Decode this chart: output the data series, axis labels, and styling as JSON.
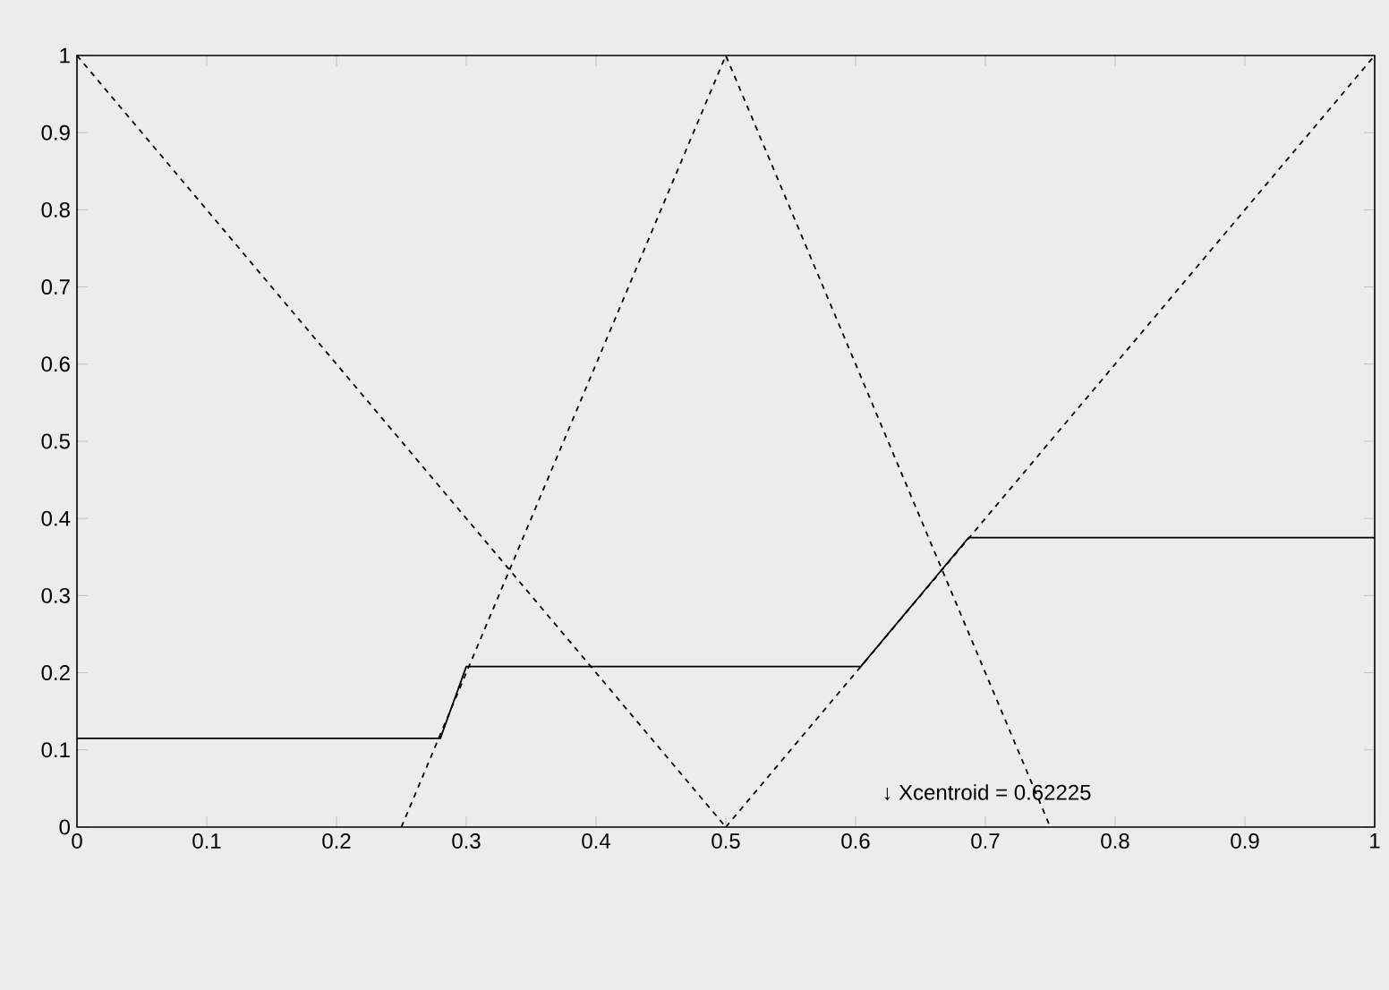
{
  "chart_data": {
    "type": "line",
    "series": [
      {
        "x": [
          0,
          0.5
        ],
        "values": [
          1,
          0
        ],
        "color": "#000000",
        "line_style": "dashed"
      },
      {
        "x": [
          0.25,
          0.5,
          0.75
        ],
        "values": [
          0,
          1,
          0
        ],
        "color": "#000000",
        "line_style": "dashed"
      },
      {
        "x": [
          0.5,
          1
        ],
        "values": [
          0,
          1
        ],
        "color": "#000000",
        "line_style": "dashed"
      },
      {
        "x": [
          0,
          0.28,
          0.3,
          0.604,
          0.687,
          1
        ],
        "values": [
          0.115,
          0.115,
          0.208,
          0.208,
          0.375,
          0.375
        ],
        "color": "#000000",
        "line_style": "solid"
      }
    ],
    "xlim": [
      0,
      1
    ],
    "ylim": [
      0,
      1
    ],
    "xticks": [
      0,
      0.1,
      0.2,
      0.3,
      0.4,
      0.5,
      0.6,
      0.7,
      0.8,
      0.9,
      1
    ],
    "yticks": [
      0,
      0.1,
      0.2,
      0.3,
      0.4,
      0.5,
      0.6,
      0.7,
      0.8,
      0.9,
      1
    ],
    "annotations": [
      "↓ Xcentroid = 0.62225"
    ]
  }
}
